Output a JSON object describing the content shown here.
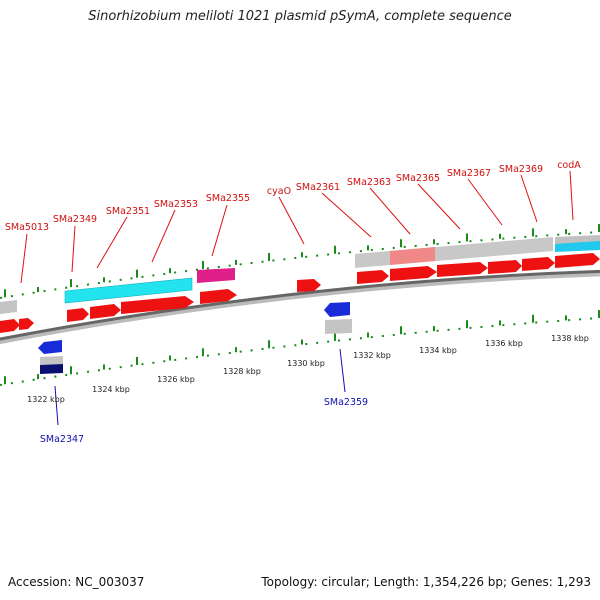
{
  "title": "Sinorhizobium meliloti 1021 plasmid pSymA, complete sequence",
  "accession": "Accession: NC_003037",
  "summary": "Topology: circular; Length: 1,354,226 bp; Genes: 1,293",
  "colors": {
    "forward_gene": "#ee1111",
    "reverse_gene": "#1a2bd8",
    "cyan_feature": "#22e3ee",
    "magenta_feature": "#e0208a",
    "gray_feature": "#c4c4c4",
    "forward_label": "#d01010",
    "reverse_label": "#1010b0",
    "scale_tick": "#1a8a1a"
  },
  "forward_labels": [
    "SMa5013",
    "SMa2349",
    "SMa2351",
    "SMa2353",
    "SMa2355",
    "cyaO",
    "SMa2361",
    "SMa2363",
    "SMa2365",
    "SMa2367",
    "SMa2369",
    "codA"
  ],
  "reverse_labels": [
    "SMa2347",
    "SMa2359"
  ],
  "scale_labels": [
    "1322 kbp",
    "1324 kbp",
    "1326 kbp",
    "1328 kbp",
    "1330 kbp",
    "1332 kbp",
    "1334 kbp",
    "1336 kbp",
    "1338 kbp"
  ]
}
